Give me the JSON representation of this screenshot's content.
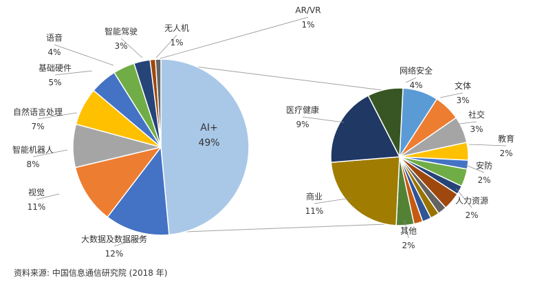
{
  "chart_data": {
    "type": "pie",
    "subtype": "pie-of-pie",
    "series": [
      {
        "name": "",
        "slices": [
          {
            "label": "AI+",
            "percent": "49%",
            "value": 49,
            "color": "#a9c8e8"
          },
          {
            "label": "大数据及数据服务",
            "percent": "12%",
            "value": 12,
            "color": "#4472c4"
          },
          {
            "label": "视觉",
            "percent": "11%",
            "value": 11,
            "color": "#ed7d31"
          },
          {
            "label": "智能机器人",
            "percent": "8%",
            "value": 8,
            "color": "#a5a5a5"
          },
          {
            "label": "自然语言处理",
            "percent": "7%",
            "value": 7,
            "color": "#ffc000"
          },
          {
            "label": "基础硬件",
            "percent": "5%",
            "value": 5,
            "color": "#4472c4"
          },
          {
            "label": "语音",
            "percent": "4%",
            "value": 4,
            "color": "#70ad47"
          },
          {
            "label": "智能驾驶",
            "percent": "3%",
            "value": 3,
            "color": "#264478"
          },
          {
            "label": "无人机",
            "percent": "1%",
            "value": 1,
            "color": "#9e480e"
          },
          {
            "label": "AR/VR",
            "percent": "1%",
            "value": 1,
            "color": "#636363"
          }
        ]
      },
      {
        "name": "",
        "slices": [
          {
            "label": "网络安全",
            "percent": "4%",
            "value": 4,
            "color": "#5b9bd5"
          },
          {
            "label": "文体",
            "percent": "3%",
            "value": 3,
            "color": "#ed7d31"
          },
          {
            "label": "社交",
            "percent": "3%",
            "value": 3,
            "color": "#a5a5a5"
          },
          {
            "label": "教育",
            "percent": "2%",
            "value": 2,
            "color": "#ffc000"
          },
          {
            "label": "",
            "percent": "",
            "value": 1,
            "color": "#4472c4"
          },
          {
            "label": "安防",
            "percent": "2%",
            "value": 2,
            "color": "#70ad47"
          },
          {
            "label": "",
            "percent": "",
            "value": 1,
            "color": "#264478"
          },
          {
            "label": "人力资源",
            "percent": "2%",
            "value": 2,
            "color": "#9e480e"
          },
          {
            "label": "",
            "percent": "",
            "value": 1,
            "color": "#636363"
          },
          {
            "label": "",
            "percent": "",
            "value": 1,
            "color": "#997300"
          },
          {
            "label": "",
            "percent": "",
            "value": 1,
            "color": "#2f5597"
          },
          {
            "label": "",
            "percent": "",
            "value": 1,
            "color": "#c55a11"
          },
          {
            "label": "其他",
            "percent": "2%",
            "value": 2,
            "color": "#548235"
          },
          {
            "label": "商业",
            "percent": "11%",
            "value": 11,
            "color": "#a07c00"
          },
          {
            "label": "医疗健康",
            "percent": "9%",
            "value": 9,
            "color": "#1f3864"
          },
          {
            "label": "",
            "percent": "",
            "value": 4,
            "color": "#375623"
          }
        ]
      }
    ],
    "title": "",
    "legend": "none"
  },
  "source_note": "资料来源: 中国信息通信研究院 (2018 年)"
}
